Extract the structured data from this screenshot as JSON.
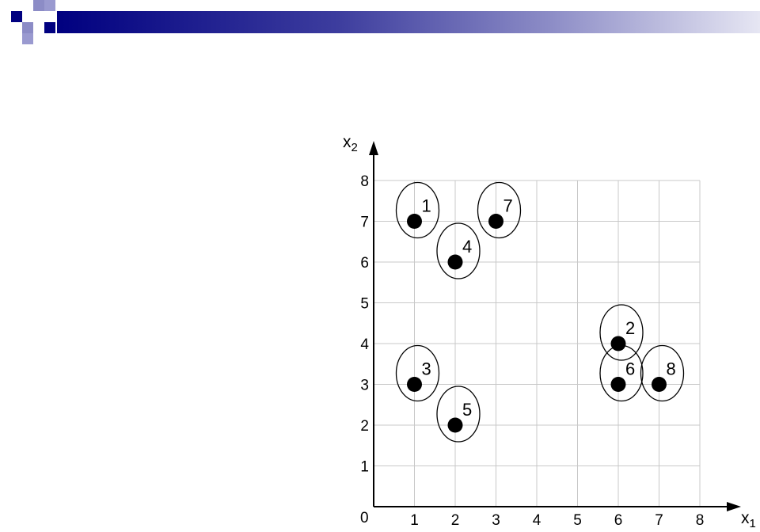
{
  "chart_data": {
    "type": "scatter",
    "x_axis_label": "x",
    "x_axis_subscript": "1",
    "y_axis_label": "x",
    "y_axis_subscript": "2",
    "origin_label": "0",
    "xlim": [
      0,
      8
    ],
    "ylim": [
      0,
      8
    ],
    "x_ticks": [
      "1",
      "2",
      "3",
      "4",
      "5",
      "6",
      "7",
      "8"
    ],
    "y_ticks": [
      "1",
      "2",
      "3",
      "4",
      "5",
      "6",
      "7",
      "8"
    ],
    "grid": true,
    "points": [
      {
        "label": "1",
        "x": 1,
        "y": 7
      },
      {
        "label": "2",
        "x": 6,
        "y": 4
      },
      {
        "label": "3",
        "x": 1,
        "y": 3
      },
      {
        "label": "4",
        "x": 2,
        "y": 6
      },
      {
        "label": "5",
        "x": 2,
        "y": 2
      },
      {
        "label": "6",
        "x": 6,
        "y": 3
      },
      {
        "label": "7",
        "x": 3,
        "y": 7
      },
      {
        "label": "8",
        "x": 7,
        "y": 3
      }
    ],
    "point_color": "#000000",
    "grid_color": "#c8c8c8"
  },
  "banner": {
    "dark_color": "#000080",
    "light_color": "#8c8cc6"
  }
}
